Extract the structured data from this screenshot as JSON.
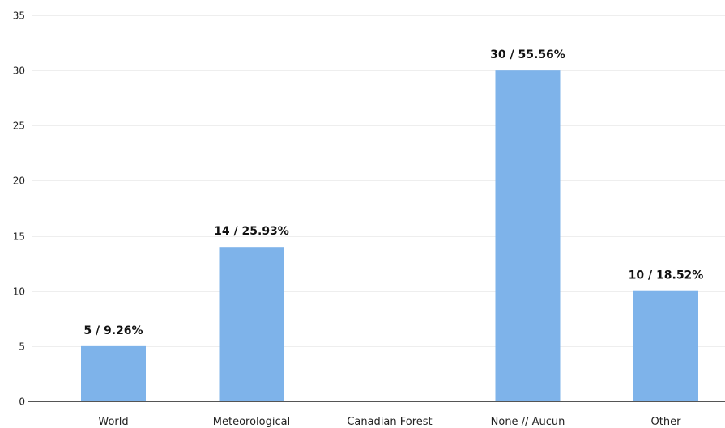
{
  "chart_data": {
    "type": "bar",
    "title": "",
    "xlabel": "",
    "ylabel": "",
    "ylim": [
      0,
      35
    ],
    "yticks": [
      0,
      5,
      10,
      15,
      20,
      25,
      30,
      35
    ],
    "grid": true,
    "categories": [
      "World",
      "Meteorological",
      "Canadian Forest",
      "None // Aucun",
      "Other"
    ],
    "values": [
      5,
      14,
      0,
      30,
      10
    ],
    "data_labels": [
      "5 / 9.26%",
      "14 / 25.93%",
      "",
      "30 / 55.56%",
      "10 / 18.52%"
    ],
    "bar_color": "#7eb3ea"
  }
}
